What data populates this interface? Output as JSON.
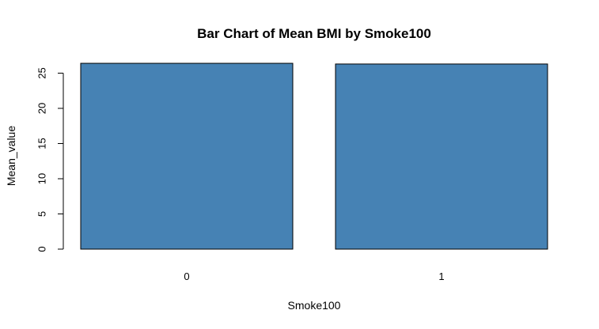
{
  "chart_data": {
    "type": "bar",
    "title": "Bar Chart of Mean BMI by Smoke100",
    "xlabel": "Smoke100",
    "ylabel": "Mean_value",
    "categories": [
      "0",
      "1"
    ],
    "values": [
      26.4,
      26.3
    ],
    "ylim": [
      0,
      25
    ],
    "yticks": [
      0,
      5,
      10,
      15,
      20,
      25
    ],
    "bar_color": "#4682B4",
    "grid": false
  }
}
